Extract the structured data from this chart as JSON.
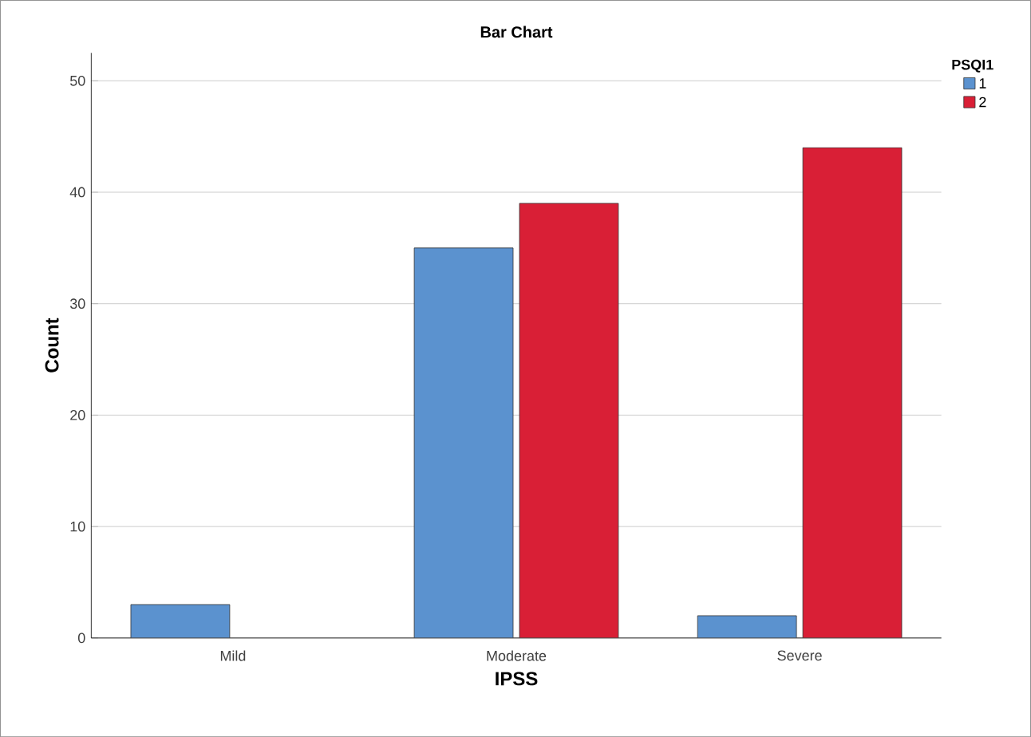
{
  "chart_data": {
    "type": "bar",
    "title": "Bar Chart",
    "xlabel": "IPSS",
    "ylabel": "Count",
    "legend_title": "PSQI1",
    "categories": [
      "Mild",
      "Moderate",
      "Severe"
    ],
    "series": [
      {
        "name": "1",
        "color": "#5b92cf",
        "values": [
          3,
          35,
          2
        ]
      },
      {
        "name": "2",
        "color": "#d91f36",
        "values": [
          null,
          39,
          44
        ]
      }
    ],
    "ylim": [
      0,
      52.5
    ],
    "yticks": [
      0,
      10,
      20,
      30,
      40,
      50
    ],
    "grid": "y",
    "legend": "top right"
  }
}
